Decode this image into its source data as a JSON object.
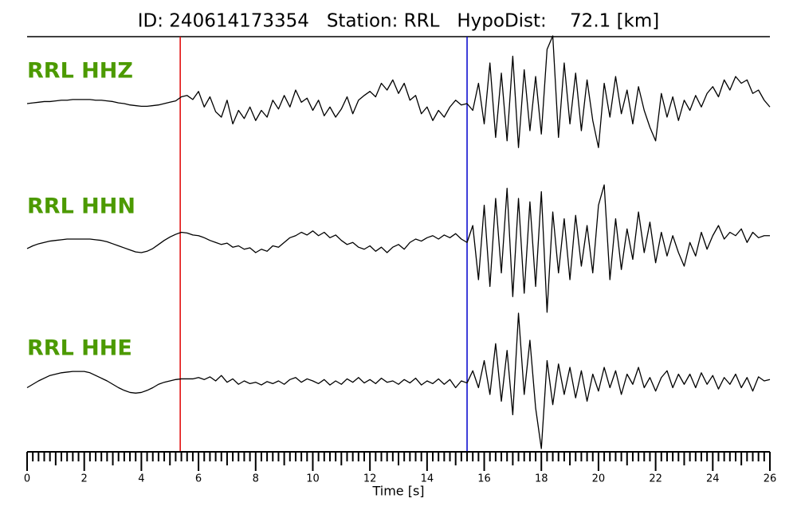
{
  "chart_data": {
    "type": "line",
    "title": "ID: 240614173354   Station: RRL   HypoDist:    72.1 [km]",
    "xlabel": "Time [s]",
    "xlim": [
      0,
      26
    ],
    "xticks": [
      0,
      2,
      4,
      6,
      8,
      10,
      12,
      14,
      16,
      18,
      20,
      22,
      24,
      26
    ],
    "xticks_minor": [
      0.2,
      0.4,
      0.6,
      0.8,
      1,
      1.2,
      1.4,
      1.6,
      1.8,
      2.2,
      2.4,
      2.6,
      2.8,
      3,
      3.2,
      3.4,
      3.6,
      3.8,
      4.2,
      4.4,
      4.6,
      4.8,
      5,
      5.2,
      5.4,
      5.6,
      5.8,
      6.2,
      6.4,
      6.6,
      6.8,
      7,
      7.2,
      7.4,
      7.6,
      7.8,
      8.2,
      8.4,
      8.6,
      8.8,
      9,
      9.2,
      9.4,
      9.6,
      9.8,
      10.2,
      10.4,
      10.6,
      10.8,
      11,
      11.2,
      11.4,
      11.6,
      11.8,
      12.2,
      12.4,
      12.6,
      12.8,
      13,
      13.2,
      13.4,
      13.6,
      13.8,
      14.2,
      14.4,
      14.6,
      14.8,
      15,
      15.2,
      15.4,
      15.6,
      15.8,
      16.2,
      16.4,
      16.6,
      16.8,
      17,
      17.2,
      17.4,
      17.6,
      17.8,
      18.2,
      18.4,
      18.6,
      18.8,
      19,
      19.2,
      19.4,
      19.6,
      19.8,
      20.2,
      20.4,
      20.6,
      20.8,
      21,
      21.2,
      21.4,
      21.6,
      21.8,
      22.2,
      22.4,
      22.6,
      22.8,
      23,
      23.2,
      23.4,
      23.6,
      23.8,
      24.2,
      24.4,
      24.6,
      24.8,
      25,
      25.2,
      25.4,
      25.6,
      25.8
    ],
    "ylim": [
      -1,
      1
    ],
    "label_color": "#4c9a00",
    "picks": [
      {
        "x": 5.36,
        "color": "#e00000"
      },
      {
        "x": 15.4,
        "color": "#0000cc"
      }
    ],
    "x": [
      0,
      0.2,
      0.4,
      0.6,
      0.8,
      1,
      1.2,
      1.4,
      1.6,
      1.8,
      2,
      2.2,
      2.4,
      2.6,
      2.8,
      3,
      3.2,
      3.4,
      3.6,
      3.8,
      4,
      4.2,
      4.4,
      4.6,
      4.8,
      5,
      5.2,
      5.4,
      5.6,
      5.8,
      6,
      6.2,
      6.4,
      6.6,
      6.8,
      7,
      7.2,
      7.4,
      7.6,
      7.8,
      8,
      8.2,
      8.4,
      8.6,
      8.8,
      9,
      9.2,
      9.4,
      9.6,
      9.8,
      10,
      10.2,
      10.4,
      10.6,
      10.8,
      11,
      11.2,
      11.4,
      11.6,
      11.8,
      12,
      12.2,
      12.4,
      12.6,
      12.8,
      13,
      13.2,
      13.4,
      13.6,
      13.8,
      14,
      14.2,
      14.4,
      14.6,
      14.8,
      15,
      15.2,
      15.4,
      15.6,
      15.8,
      16,
      16.2,
      16.4,
      16.6,
      16.8,
      17,
      17.2,
      17.4,
      17.6,
      17.8,
      18,
      18.2,
      18.4,
      18.6,
      18.8,
      19,
      19.2,
      19.4,
      19.6,
      19.8,
      20,
      20.2,
      20.4,
      20.6,
      20.8,
      21,
      21.2,
      21.4,
      21.6,
      21.8,
      22,
      22.2,
      22.4,
      22.6,
      22.8,
      23,
      23.2,
      23.4,
      23.6,
      23.8,
      24,
      24.2,
      24.4,
      24.6,
      24.8,
      25,
      25.2,
      25.4,
      25.6,
      25.8,
      26
    ],
    "series": [
      {
        "name": "RRL HHZ",
        "color": "#000000",
        "values": [
          0,
          0.01,
          0.02,
          0.03,
          0.03,
          0.04,
          0.05,
          0.05,
          0.06,
          0.06,
          0.06,
          0.06,
          0.05,
          0.05,
          0.04,
          0.03,
          0.01,
          0,
          -0.02,
          -0.03,
          -0.04,
          -0.04,
          -0.03,
          -0.02,
          0,
          0.02,
          0.04,
          0.1,
          0.12,
          0.06,
          0.18,
          -0.05,
          0.1,
          -0.12,
          -0.2,
          0.05,
          -0.3,
          -0.1,
          -0.22,
          -0.05,
          -0.25,
          -0.1,
          -0.2,
          0.05,
          -0.08,
          0.12,
          -0.05,
          0.2,
          0.02,
          0.08,
          -0.1,
          0.05,
          -0.18,
          -0.05,
          -0.2,
          -0.08,
          0.1,
          -0.15,
          0.05,
          0.12,
          0.18,
          0.1,
          0.3,
          0.2,
          0.35,
          0.15,
          0.3,
          0.05,
          0.12,
          -0.15,
          -0.05,
          -0.25,
          -0.1,
          -0.2,
          -0.05,
          0.05,
          -0.02,
          0,
          -0.1,
          0.3,
          -0.3,
          0.6,
          -0.5,
          0.45,
          -0.55,
          0.7,
          -0.65,
          0.5,
          -0.4,
          0.4,
          -0.45,
          0.8,
          1.0,
          -0.5,
          0.6,
          -0.3,
          0.45,
          -0.4,
          0.35,
          -0.25,
          -0.65,
          0.3,
          -0.2,
          0.4,
          -0.15,
          0.2,
          -0.3,
          0.25,
          -0.1,
          -0.35,
          -0.55,
          0.15,
          -0.2,
          0.1,
          -0.25,
          0.05,
          -0.1,
          0.12,
          -0.05,
          0.15,
          0.25,
          0.1,
          0.35,
          0.2,
          0.4,
          0.3,
          0.35,
          0.15,
          0.2,
          0.05,
          -0.05
        ]
      },
      {
        "name": "RRL HHN",
        "color": "#000000",
        "values": [
          -0.14,
          -0.1,
          -0.07,
          -0.05,
          -0.03,
          -0.02,
          -0.01,
          0,
          0,
          0,
          0,
          0,
          -0.01,
          -0.02,
          -0.04,
          -0.07,
          -0.1,
          -0.13,
          -0.16,
          -0.19,
          -0.2,
          -0.18,
          -0.14,
          -0.08,
          -0.02,
          0.03,
          0.07,
          0.1,
          0.09,
          0.06,
          0.05,
          0.02,
          -0.02,
          -0.05,
          -0.08,
          -0.06,
          -0.12,
          -0.1,
          -0.15,
          -0.13,
          -0.2,
          -0.15,
          -0.18,
          -0.1,
          -0.12,
          -0.05,
          0.02,
          0.05,
          0.1,
          0.06,
          0.12,
          0.05,
          0.1,
          0.02,
          0.06,
          -0.02,
          -0.08,
          -0.05,
          -0.12,
          -0.15,
          -0.1,
          -0.18,
          -0.12,
          -0.2,
          -0.12,
          -0.08,
          -0.15,
          -0.05,
          0,
          -0.03,
          0.02,
          0.05,
          0,
          0.06,
          0.02,
          0.08,
          0,
          -0.05,
          0.2,
          -0.6,
          0.5,
          -0.7,
          0.6,
          -0.5,
          0.75,
          -0.85,
          0.6,
          -0.8,
          0.55,
          -0.7,
          0.7,
          -1.08,
          0.4,
          -0.5,
          0.3,
          -0.6,
          0.35,
          -0.4,
          0.2,
          -0.5,
          0.5,
          0.8,
          -0.6,
          0.3,
          -0.45,
          0.15,
          -0.3,
          0.4,
          -0.2,
          0.25,
          -0.35,
          0.1,
          -0.25,
          0.05,
          -0.2,
          -0.4,
          -0.05,
          -0.25,
          0.1,
          -0.15,
          0.05,
          0.2,
          0,
          0.1,
          0.05,
          0.15,
          -0.05,
          0.1,
          0.02,
          0.05,
          0.05
        ]
      },
      {
        "name": "RRL HHE",
        "color": "#000000",
        "values": [
          -0.1,
          -0.05,
          0,
          0.04,
          0.08,
          0.1,
          0.12,
          0.13,
          0.14,
          0.14,
          0.14,
          0.12,
          0.08,
          0.04,
          0,
          -0.05,
          -0.1,
          -0.14,
          -0.17,
          -0.18,
          -0.17,
          -0.14,
          -0.1,
          -0.05,
          -0.02,
          0,
          0.02,
          0.03,
          0.03,
          0.03,
          0.05,
          0.02,
          0.06,
          0,
          0.08,
          -0.02,
          0.03,
          -0.05,
          0,
          -0.04,
          -0.02,
          -0.06,
          -0.01,
          -0.04,
          0,
          -0.05,
          0.02,
          0.05,
          -0.02,
          0.03,
          0,
          -0.04,
          0.02,
          -0.06,
          0,
          -0.05,
          0.03,
          -0.02,
          0.05,
          -0.03,
          0.02,
          -0.04,
          0.04,
          -0.02,
          0,
          -0.05,
          0.02,
          -0.03,
          0.04,
          -0.06,
          0,
          -0.04,
          0.03,
          -0.05,
          0.02,
          -0.1,
          0,
          -0.03,
          0.15,
          -0.1,
          0.3,
          -0.2,
          0.55,
          -0.3,
          0.45,
          -0.5,
          1.0,
          -0.2,
          0.6,
          -0.4,
          -1.0,
          0.3,
          -0.35,
          0.25,
          -0.2,
          0.2,
          -0.25,
          0.15,
          -0.3,
          0.1,
          -0.15,
          0.2,
          -0.1,
          0.15,
          -0.2,
          0.1,
          -0.05,
          0.2,
          -0.1,
          0.05,
          -0.15,
          0.05,
          0.15,
          -0.1,
          0.1,
          -0.05,
          0.1,
          -0.1,
          0.12,
          -0.05,
          0.08,
          -0.12,
          0.05,
          -0.05,
          0.1,
          -0.1,
          0.05,
          -0.15,
          0.06,
          0,
          0.02
        ]
      }
    ]
  }
}
